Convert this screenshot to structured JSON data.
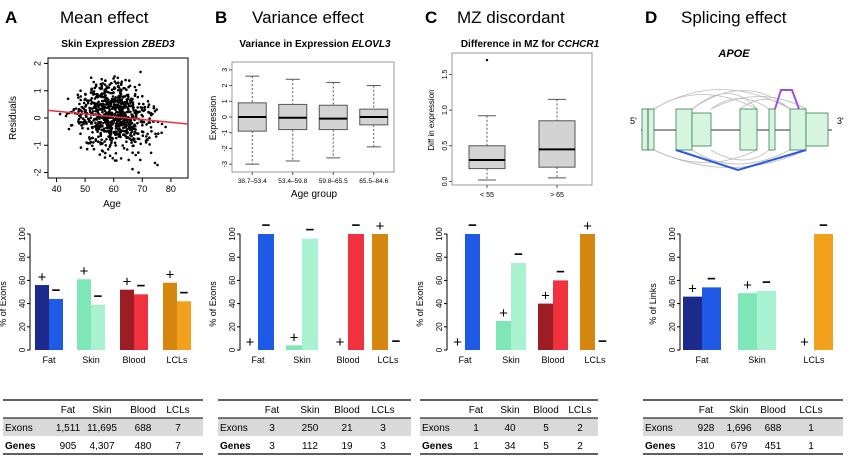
{
  "panelA": {
    "letter": "A",
    "heading": "Mean effect",
    "plot_title": "Skin Expression",
    "plot_gene": "ZBED3",
    "ylabel": "Residuals",
    "xlabel": "Age",
    "xticks": [
      "40",
      "50",
      "60",
      "70",
      "80"
    ],
    "yticks": [
      "2",
      "1",
      "0",
      "-1",
      "-2"
    ],
    "fit_line_color": "#e8323c",
    "chart_data": {
      "type": "scatter",
      "x_range": [
        37,
        86
      ],
      "y_range": [
        -2.2,
        2.2
      ],
      "n_points": 800,
      "fit_line": {
        "x": [
          37,
          86
        ],
        "y": [
          0.28,
          -0.22
        ]
      }
    },
    "bar_ylabel": "% of Exons",
    "bar_yticks": [
      "0",
      "20",
      "40",
      "60",
      "80",
      "100"
    ],
    "bars": {
      "type": "bar",
      "ylim": [
        0,
        100
      ],
      "categories": [
        "Fat",
        "Skin",
        "Blood",
        "LCLs"
      ],
      "series": [
        {
          "name": "+",
          "values": [
            56,
            61,
            52,
            58
          ]
        },
        {
          "name": "−",
          "values": [
            44,
            39,
            48,
            42
          ]
        }
      ],
      "colors_plus": [
        "#1c2a8c",
        "#7fe6b8",
        "#9c1d24",
        "#d4860f"
      ],
      "colors_minus": [
        "#1f5ae6",
        "#a8f2d2",
        "#f0323f",
        "#f2a11c"
      ]
    },
    "table": {
      "headers": [
        "",
        "Fat",
        "Skin",
        "Blood",
        "LCLs"
      ],
      "rows": [
        [
          "Exons",
          "1,511",
          "11,695",
          "688",
          "7"
        ],
        [
          "Genes",
          "905",
          "4,307",
          "480",
          "7"
        ]
      ]
    }
  },
  "panelB": {
    "letter": "B",
    "heading": "Variance effect",
    "plot_title": "Variance in Expression",
    "plot_gene": "ELOVL3",
    "ylabel": "Expression",
    "xlabel": "Age group",
    "xticks": [
      "38.7–53.4",
      "53.4–59.8",
      "59.8–65.5",
      "65.5–84.6"
    ],
    "yticks": [
      "3",
      "2",
      "1",
      "0",
      "-1",
      "-2",
      "-3"
    ],
    "chart_data": {
      "type": "box",
      "y_range": [
        -3.5,
        3.5
      ],
      "boxes": [
        {
          "label": "38.7–53.4",
          "min": -3.0,
          "q1": -0.9,
          "median": 0.0,
          "q3": 0.9,
          "max": 2.6
        },
        {
          "label": "53.4–59.8",
          "min": -2.8,
          "q1": -0.8,
          "median": -0.05,
          "q3": 0.8,
          "max": 2.4
        },
        {
          "label": "59.8–65.5",
          "min": -2.6,
          "q1": -0.8,
          "median": -0.1,
          "q3": 0.75,
          "max": 2.2
        },
        {
          "label": "65.5–84.6",
          "min": -1.9,
          "q1": -0.5,
          "median": 0.0,
          "q3": 0.5,
          "max": 2.0
        }
      ]
    },
    "bar_ylabel": "% of Exons",
    "bar_yticks": [
      "0",
      "20",
      "40",
      "60",
      "80",
      "100"
    ],
    "bars": {
      "type": "bar",
      "ylim": [
        0,
        100
      ],
      "categories": [
        "Fat",
        "Skin",
        "Blood",
        "LCLs"
      ],
      "series": [
        {
          "name": "+",
          "values": [
            0,
            4,
            0,
            100
          ]
        },
        {
          "name": "−",
          "values": [
            100,
            96,
            100,
            0
          ]
        }
      ],
      "colors_plus": [
        "#1c2a8c",
        "#7fe6b8",
        "#9c1d24",
        "#d4860f"
      ],
      "colors_minus": [
        "#1f5ae6",
        "#a8f2d2",
        "#f0323f",
        "#f2a11c"
      ]
    },
    "table": {
      "headers": [
        "",
        "Fat",
        "Skin",
        "Blood",
        "LCLs"
      ],
      "rows": [
        [
          "Exons",
          "3",
          "250",
          "21",
          "3"
        ],
        [
          "Genes",
          "3",
          "112",
          "19",
          "3"
        ]
      ]
    }
  },
  "panelC": {
    "letter": "C",
    "heading": "MZ discordant",
    "plot_title": "Difference in MZ for",
    "plot_gene": "CCHCR1",
    "ylabel": "Diff in expression",
    "xticks": [
      "< 55",
      "> 65"
    ],
    "yticks": [
      "1.5",
      "1.0",
      "0.5",
      "0.0"
    ],
    "chart_data": {
      "type": "box",
      "y_range": [
        -0.05,
        1.8
      ],
      "boxes": [
        {
          "label": "< 55",
          "min": 0.02,
          "q1": 0.18,
          "median": 0.3,
          "q3": 0.5,
          "max": 0.92,
          "outlier": 1.7
        },
        {
          "label": "> 65",
          "min": 0.05,
          "q1": 0.2,
          "median": 0.45,
          "q3": 0.85,
          "max": 1.15
        }
      ]
    },
    "bar_ylabel": "% of Exons",
    "bar_yticks": [
      "0",
      "20",
      "40",
      "60",
      "80",
      "100"
    ],
    "bars": {
      "type": "bar",
      "ylim": [
        0,
        100
      ],
      "categories": [
        "Fat",
        "Skin",
        "Blood",
        "LCLs"
      ],
      "series": [
        {
          "name": "+",
          "values": [
            0,
            25,
            40,
            100
          ]
        },
        {
          "name": "−",
          "values": [
            100,
            75,
            60,
            0
          ]
        }
      ],
      "colors_plus": [
        "#1c2a8c",
        "#7fe6b8",
        "#9c1d24",
        "#d4860f"
      ],
      "colors_minus": [
        "#1f5ae6",
        "#a8f2d2",
        "#f0323f",
        "#f2a11c"
      ]
    },
    "table": {
      "headers": [
        "",
        "Fat",
        "Skin",
        "Blood",
        "LCLs"
      ],
      "rows": [
        [
          "Exons",
          "1",
          "40",
          "5",
          "2"
        ],
        [
          "Genes",
          "1",
          "34",
          "5",
          "2"
        ]
      ]
    }
  },
  "panelD": {
    "letter": "D",
    "heading": "Splicing effect",
    "gene": "APOE",
    "five_prime": "5'",
    "three_prime": "3'",
    "exon_fill": "#d6f5df",
    "link_plus_color": "#9b4fe0",
    "link_minus_color": "#2a5ae0",
    "bar_ylabel": "% of Links",
    "bar_yticks": [
      "0",
      "20",
      "40",
      "60",
      "80",
      "100"
    ],
    "bars": {
      "type": "bar",
      "ylim": [
        0,
        100
      ],
      "categories": [
        "Fat",
        "Skin",
        "LCLs"
      ],
      "series": [
        {
          "name": "+",
          "values": [
            46,
            49,
            0
          ]
        },
        {
          "name": "−",
          "values": [
            54,
            51,
            100
          ]
        }
      ],
      "colors_plus": [
        "#1c2a8c",
        "#7fe6b8",
        "#d4860f"
      ],
      "colors_minus": [
        "#1f5ae6",
        "#a8f2d2",
        "#f2a11c"
      ]
    },
    "table": {
      "headers": [
        "",
        "Fat",
        "Skin",
        "Blood",
        "LCLs"
      ],
      "rows": [
        [
          "Exons",
          "928",
          "1,696",
          "688",
          "1"
        ],
        [
          "Genes",
          "310",
          "679",
          "451",
          "1"
        ]
      ]
    }
  }
}
